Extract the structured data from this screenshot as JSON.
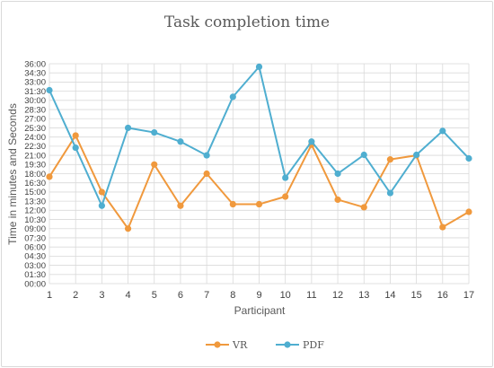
{
  "chart_data": {
    "type": "line",
    "title": "Task completion time",
    "xlabel": "Participant",
    "ylabel": "Time in minutes and Seconds",
    "x": [
      1,
      2,
      3,
      4,
      5,
      6,
      7,
      8,
      9,
      10,
      11,
      12,
      13,
      14,
      15,
      16,
      17
    ],
    "y_ticks": [
      "00:00",
      "01:30",
      "03:00",
      "04:30",
      "06:00",
      "07:30",
      "09:00",
      "10:30",
      "12:00",
      "13:30",
      "15:00",
      "16:30",
      "18:00",
      "19:30",
      "21:00",
      "22:30",
      "24:00",
      "25:30",
      "27:00",
      "28:30",
      "30:00",
      "31:30",
      "33:00",
      "34:30",
      "36:00"
    ],
    "ylim_seconds": [
      0,
      2160
    ],
    "grid": true,
    "legend_position": "bottom",
    "series": [
      {
        "name": "VR",
        "color": "#f0993d",
        "values_seconds": [
          1050,
          1455,
          900,
          540,
          1170,
          765,
          1080,
          780,
          780,
          855,
          1365,
          825,
          750,
          1220,
          1260,
          555,
          705
        ]
      },
      {
        "name": "PDF",
        "color": "#4faed0",
        "values_seconds": [
          1900,
          1335,
          765,
          1530,
          1485,
          1395,
          1260,
          1835,
          2130,
          1040,
          1395,
          1080,
          1265,
          890,
          1265,
          1500,
          1230
        ]
      }
    ]
  }
}
